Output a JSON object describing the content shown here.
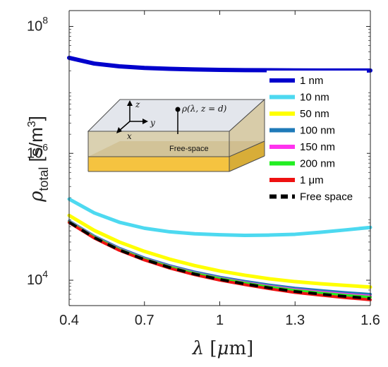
{
  "chart_data": {
    "type": "line",
    "xlabel": "λ [μm]",
    "ylabel": "ρ_total [s/m^3]",
    "xlim": [
      0.4,
      1.6
    ],
    "ylim_log10": [
      3.6,
      8.25
    ],
    "yscale": "log",
    "x_ticks": [
      "0.4",
      "0.7",
      "1",
      "1.3",
      "1.6"
    ],
    "y_ticks": [
      {
        "base": "10",
        "exp": "4"
      },
      {
        "base": "10",
        "exp": "6"
      },
      {
        "base": "10",
        "exp": "8"
      }
    ],
    "legend_position": "right",
    "x": [
      0.4,
      0.5,
      0.6,
      0.7,
      0.8,
      0.9,
      1.0,
      1.1,
      1.2,
      1.3,
      1.4,
      1.5,
      1.6
    ],
    "series": [
      {
        "name": "1 nm",
        "color": "#0000cc",
        "values": [
          32000000,
          26000000,
          23500000,
          22200000,
          21500000,
          21000000,
          20700000,
          20500000,
          20400000,
          20300000,
          20200000,
          20200000,
          20200000
        ]
      },
      {
        "name": "10 nm",
        "color": "#4dd9f0",
        "values": [
          190000,
          115000,
          82000,
          66000,
          58000,
          54000,
          52000,
          51000,
          51500,
          53000,
          57000,
          62000,
          68000
        ]
      },
      {
        "name": "50 nm",
        "color": "#ffff00",
        "values": [
          105000,
          61000,
          40000,
          28500,
          21500,
          17000,
          14000,
          12000,
          10500,
          9500,
          8800,
          8300,
          7800
        ]
      },
      {
        "name": "100 nm",
        "color": "#1f7ab8",
        "values": [
          86000,
          49500,
          32000,
          22500,
          17000,
          13500,
          11200,
          9600,
          8400,
          7500,
          6900,
          6400,
          6000
        ]
      },
      {
        "name": "150 nm",
        "color": "#ff33ee",
        "values": [
          84000,
          48000,
          31000,
          21800,
          16500,
          13000,
          10800,
          9200,
          8000,
          7100,
          6500,
          6000,
          5600
        ]
      },
      {
        "name": "200 nm",
        "color": "#22ee22",
        "values": [
          83000,
          47500,
          30500,
          21500,
          16200,
          12800,
          10600,
          9000,
          7800,
          6900,
          6300,
          5800,
          5400
        ]
      },
      {
        "name": "1 μm",
        "color": "#ee1111",
        "values": [
          81000,
          46000,
          29500,
          20800,
          15500,
          12200,
          10000,
          8500,
          7300,
          6400,
          5800,
          5300,
          4900
        ]
      },
      {
        "name": "Free space",
        "color": "#000000",
        "dashed": true,
        "values": [
          82000,
          47000,
          30000,
          21200,
          15900,
          12500,
          10300,
          8750,
          7550,
          6650,
          6050,
          5550,
          5150
        ]
      }
    ]
  },
  "inset": {
    "z_axis": "z",
    "y_axis": "y",
    "x_axis": "x",
    "point_label": "ρ(λ, z = d)",
    "region_label": "Free-space"
  }
}
